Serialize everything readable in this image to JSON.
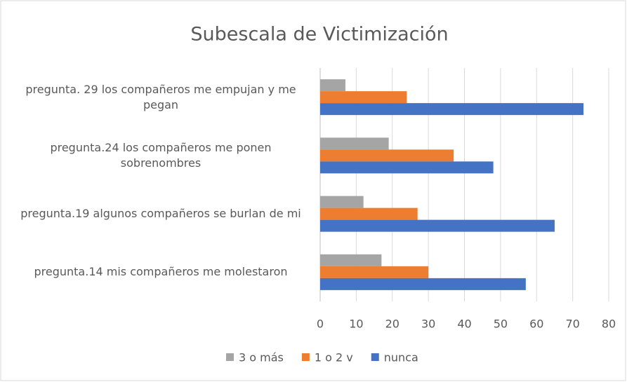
{
  "chart_data": {
    "type": "hbar",
    "title": "Subescala de Victimización",
    "categories": [
      "pregunta. 29 los compañeros me empujan y me pegan",
      "pregunta.24 los compañeros me ponen sobrenombres",
      "pregunta.19 algunos compañeros se burlan de mi",
      "pregunta.14 mis compañeros me molestaron"
    ],
    "series": [
      {
        "name": "3 o más",
        "color": "#a5a5a5",
        "values": [
          7,
          19,
          12,
          17
        ]
      },
      {
        "name": "1 o 2 v",
        "color": "#ed7d31",
        "values": [
          24,
          37,
          27,
          30
        ]
      },
      {
        "name": "nunca",
        "color": "#4472c4",
        "values": [
          73,
          48,
          65,
          57
        ]
      }
    ],
    "xlim": [
      0,
      80
    ],
    "xticks": [
      0,
      10,
      20,
      30,
      40,
      50,
      60,
      70,
      80
    ],
    "grid": true,
    "legend": "bottom"
  }
}
